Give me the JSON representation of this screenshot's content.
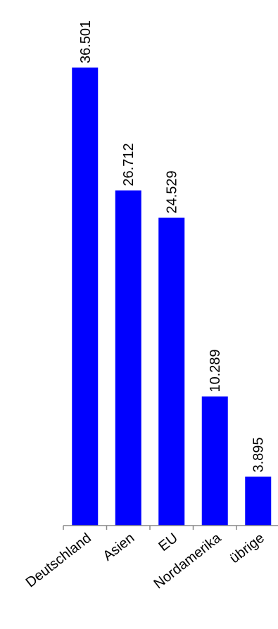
{
  "chart_data": {
    "type": "bar",
    "categories": [
      "Deutschland",
      "Asien",
      "EU",
      "Nordamerika",
      "übrige"
    ],
    "values": [
      36501,
      26712,
      24529,
      10289,
      3895
    ],
    "value_labels": [
      "36.501",
      "26.712",
      "24.529",
      "10.289",
      "3.895"
    ],
    "title": "",
    "xlabel": "",
    "ylabel": "",
    "ylim": [
      0,
      36501
    ],
    "grid": false,
    "legend": "none",
    "bar_color": "#0000ff",
    "axis_color": "#888888"
  }
}
